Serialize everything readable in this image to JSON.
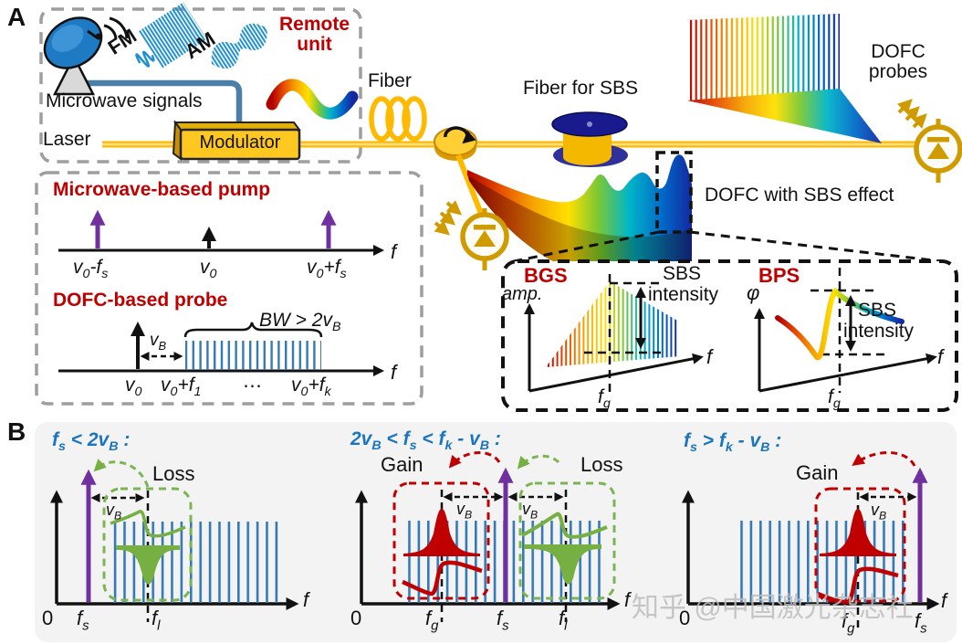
{
  "a": {
    "label": "A",
    "remote": {
      "title": "Remote unit",
      "fm": "FM",
      "am": "AM",
      "microwave": "Microwave signals",
      "laser": "Laser",
      "modulator": "Modulator"
    },
    "fiber": "Fiber",
    "fiber_sbs": "Fiber for SBS",
    "dofc_probes": "DOFC probes",
    "dofc_sbs": "DOFC with SBS effect",
    "pump": {
      "title": "Microwave-based pump",
      "t1": "v_0-f_s",
      "t2": "v_0",
      "t3": "v_0+f_s",
      "f": "f"
    },
    "probe": {
      "title": "DOFC-based probe",
      "vb": "v_B",
      "bw": "BW > 2v_B",
      "x0": "v_0",
      "x1": "v_0+f_1",
      "dots": "⋯",
      "xk": "v_0+f_k",
      "f": "f"
    },
    "bgs": {
      "title": "BGS",
      "ylabel": "amp.",
      "s1": "SBS",
      "s2": "intensity",
      "fg": "f_g",
      "f": "f"
    },
    "bps": {
      "title": "BPS",
      "ylabel": "φ",
      "s1": "SBS",
      "s2": "intensity",
      "fg": "f_g",
      "f": "f"
    }
  },
  "b": {
    "label": "B",
    "c1": {
      "title": "f_s < 2v_B :",
      "loss": "Loss",
      "vb": "v_B",
      "zero": "0",
      "fs": "f_s",
      "fl": "f_l",
      "f": "f"
    },
    "c2": {
      "title": "2v_B < f_s < f_k - v_B :",
      "gain": "Gain",
      "loss": "Loss",
      "vb": "v_B",
      "zero": "0",
      "fg": "f_g",
      "fs": "f_s",
      "fl": "f_l",
      "f": "f"
    },
    "c3": {
      "title": "f_s > f_k - v_B :",
      "gain": "Gain",
      "vb": "v_B",
      "zero": "0",
      "fg": "f_g",
      "fs": "f_s",
      "f": "f"
    }
  },
  "watermark": "知乎 @中国激光杂志社",
  "icons": [
    "satellite-dish-icon",
    "fm-wave-icon",
    "am-wave-icon",
    "rainbow-wave-icon",
    "fiber-coil-icon",
    "circulator-icon",
    "fiber-spool-icon",
    "photodiode-icon",
    "comb-spectrum-icon"
  ],
  "colors": {
    "accent_red": "#c00000",
    "accent_blue": "#1b75bc",
    "purple": "#7030a0",
    "comb_blue": "#3579b5",
    "green": "#76b043",
    "fiber_yellow": "#ffba00",
    "gray_dash": "#9e9e9e",
    "panel_bg": "#f3f3f3"
  }
}
